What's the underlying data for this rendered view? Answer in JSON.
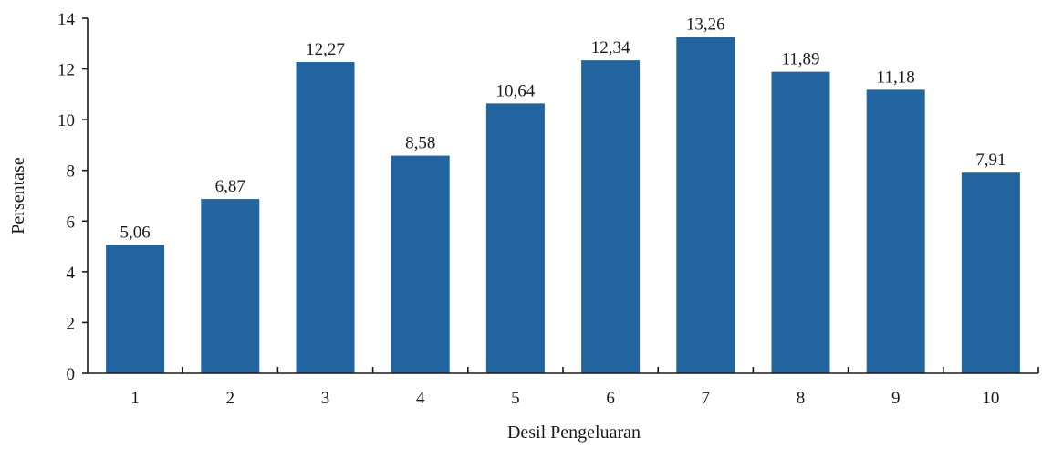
{
  "chart_data": {
    "type": "bar",
    "title": "",
    "xlabel": "Desil Pengeluaran",
    "ylabel": "Persentase",
    "categories": [
      "1",
      "2",
      "3",
      "4",
      "5",
      "6",
      "7",
      "8",
      "9",
      "10"
    ],
    "values": [
      5.06,
      6.87,
      12.27,
      8.58,
      10.64,
      12.34,
      13.26,
      11.89,
      11.18,
      7.91
    ],
    "value_labels": [
      "5,06",
      "6,87",
      "12,27",
      "8,58",
      "10,64",
      "12,34",
      "13,26",
      "11,89",
      "11,18",
      "7,91"
    ],
    "yticks": [
      "0",
      "2",
      "4",
      "6",
      "8",
      "10",
      "12",
      "14"
    ],
    "ylim": [
      0,
      14
    ],
    "grid": false,
    "legend": "none",
    "bar_color": "#2264a0"
  }
}
